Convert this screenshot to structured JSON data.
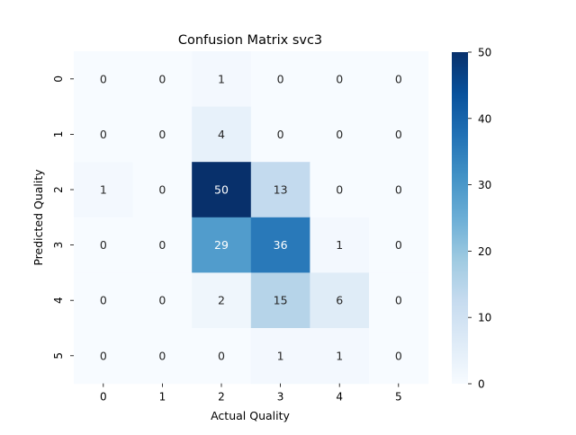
{
  "chart_data": {
    "type": "heatmap",
    "title": "Confusion Matrix svc3",
    "xlabel": "Actual Quality",
    "ylabel": "Predicted Quality",
    "x_categories": [
      "0",
      "1",
      "2",
      "3",
      "4",
      "5"
    ],
    "y_categories": [
      "0",
      "1",
      "2",
      "3",
      "4",
      "5"
    ],
    "values": [
      [
        0,
        0,
        1,
        0,
        0,
        0
      ],
      [
        0,
        0,
        4,
        0,
        0,
        0
      ],
      [
        1,
        0,
        50,
        13,
        0,
        0
      ],
      [
        0,
        0,
        29,
        36,
        1,
        0
      ],
      [
        0,
        0,
        2,
        15,
        6,
        0
      ],
      [
        0,
        0,
        0,
        1,
        1,
        0
      ]
    ],
    "colorbar": {
      "min": 0,
      "max": 50,
      "ticks": [
        0,
        10,
        20,
        30,
        40,
        50
      ],
      "colormap": "Blues"
    },
    "annotations": true,
    "grid": false
  }
}
